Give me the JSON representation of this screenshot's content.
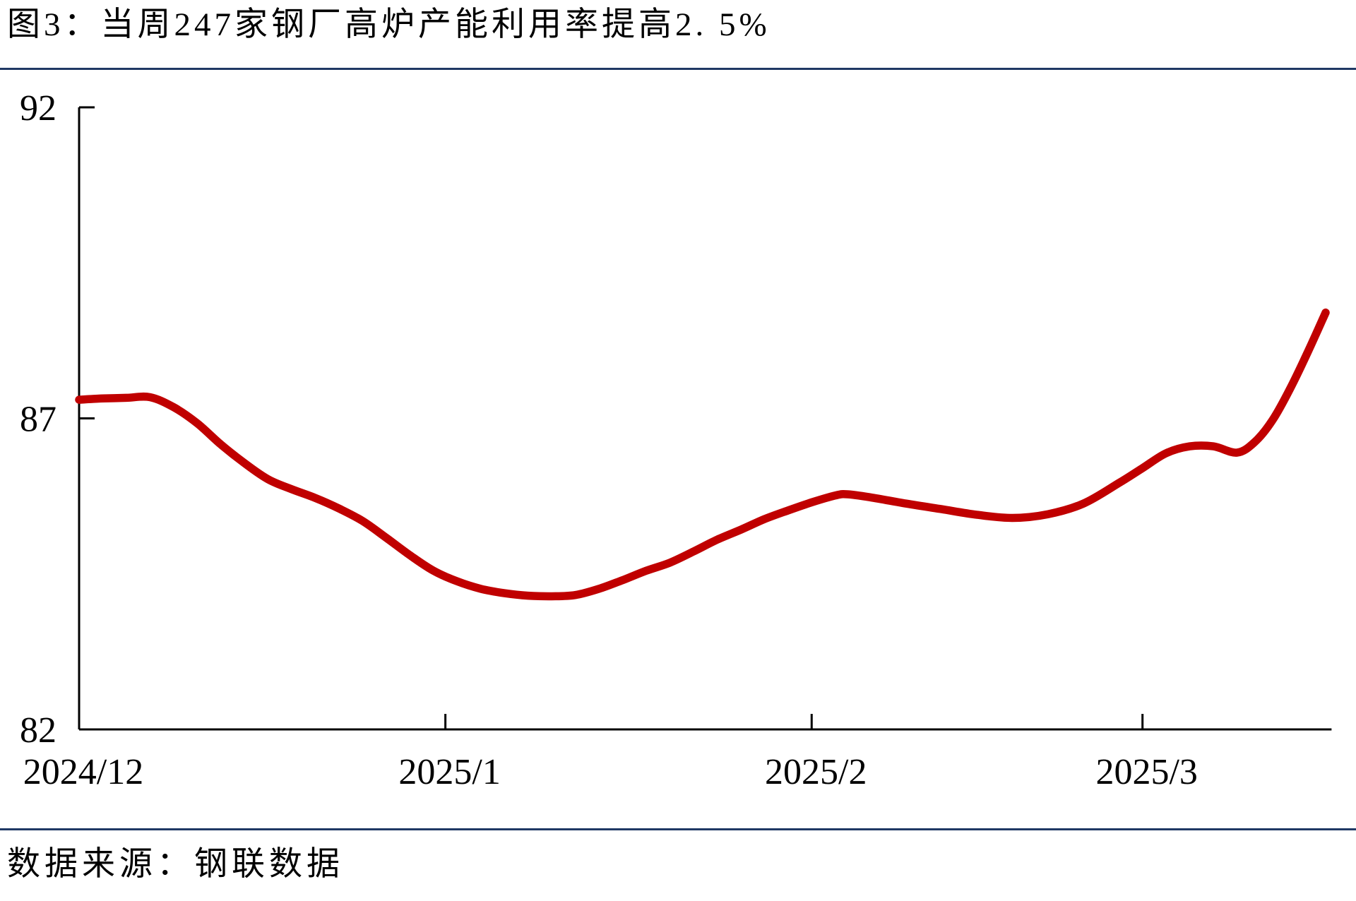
{
  "title": "图3：当周247家钢厂高炉产能利用率提高2. 5%",
  "source": "数据来源：钢联数据",
  "colors": {
    "line": "#C00000",
    "divider": "#1F3864",
    "axis": "#000000"
  },
  "chart_data": {
    "type": "line",
    "title": "当周247家钢厂高炉产能利用率提高2.5%",
    "xlabel": "",
    "ylabel": "",
    "ylim": [
      82,
      92
    ],
    "yticks": [
      92,
      87,
      82
    ],
    "grid": false,
    "legend": "none",
    "xticks": [
      {
        "label": "2024/12",
        "day": 0
      },
      {
        "label": "2025/1",
        "day": 31
      },
      {
        "label": "2025/2",
        "day": 62
      },
      {
        "label": "2025/3",
        "day": 90
      }
    ],
    "x_axis_end_day": 106,
    "series": [
      {
        "name": "当周247家钢厂高炉产能利用率(%)",
        "color": "#C00000",
        "points": [
          [
            0,
            87.3
          ],
          [
            2,
            87.32
          ],
          [
            4,
            87.33
          ],
          [
            6,
            87.34
          ],
          [
            8,
            87.18
          ],
          [
            10,
            86.92
          ],
          [
            12,
            86.58
          ],
          [
            14,
            86.28
          ],
          [
            16,
            86.02
          ],
          [
            18,
            85.86
          ],
          [
            20,
            85.72
          ],
          [
            22,
            85.55
          ],
          [
            24,
            85.35
          ],
          [
            26,
            85.08
          ],
          [
            28,
            84.8
          ],
          [
            30,
            84.55
          ],
          [
            32,
            84.38
          ],
          [
            34,
            84.26
          ],
          [
            36,
            84.19
          ],
          [
            38,
            84.15
          ],
          [
            40,
            84.14
          ],
          [
            42,
            84.16
          ],
          [
            44,
            84.26
          ],
          [
            46,
            84.4
          ],
          [
            48,
            84.55
          ],
          [
            50,
            84.68
          ],
          [
            52,
            84.86
          ],
          [
            54,
            85.05
          ],
          [
            56,
            85.21
          ],
          [
            58,
            85.38
          ],
          [
            60,
            85.52
          ],
          [
            62,
            85.65
          ],
          [
            64,
            85.76
          ],
          [
            65,
            85.78
          ],
          [
            67,
            85.73
          ],
          [
            70,
            85.63
          ],
          [
            73,
            85.54
          ],
          [
            76,
            85.45
          ],
          [
            79,
            85.4
          ],
          [
            82,
            85.46
          ],
          [
            85,
            85.63
          ],
          [
            88,
            85.96
          ],
          [
            90,
            86.2
          ],
          [
            92,
            86.44
          ],
          [
            94,
            86.55
          ],
          [
            96,
            86.55
          ],
          [
            98,
            86.45
          ],
          [
            99.5,
            86.62
          ],
          [
            101,
            86.97
          ],
          [
            102.5,
            87.48
          ],
          [
            104,
            88.07
          ],
          [
            105.5,
            88.7
          ]
        ]
      }
    ]
  }
}
